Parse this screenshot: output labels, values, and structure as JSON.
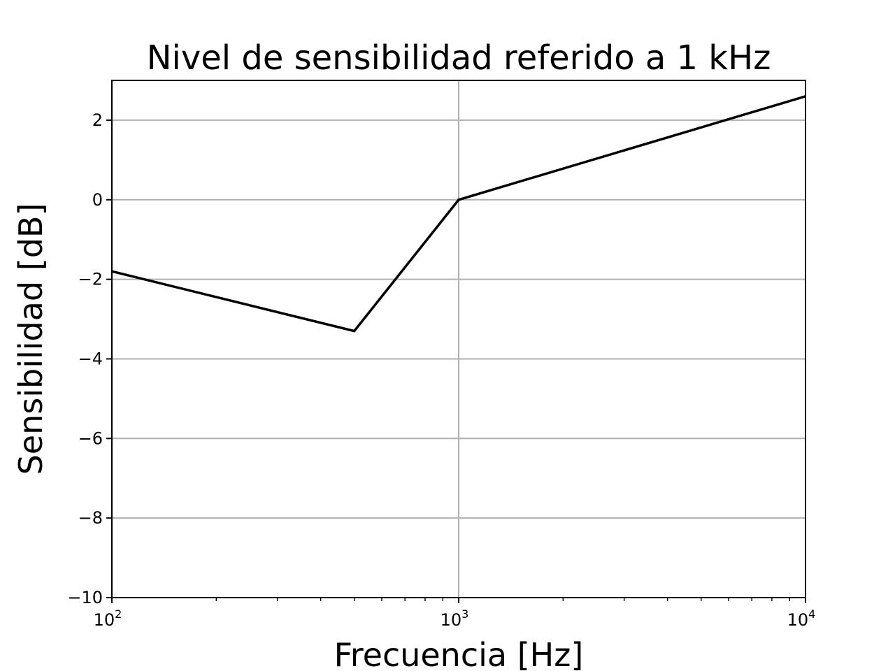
{
  "chart_data": {
    "type": "line",
    "title": "Nivel de sensibilidad referido a 1 kHz",
    "xlabel": "Frecuencia [Hz]",
    "ylabel": "Sensibilidad [dB]",
    "x_scale": "log",
    "xlim": [
      100,
      10000
    ],
    "ylim": [
      -10,
      3
    ],
    "x_ticks": [
      {
        "value": 100,
        "base": "10",
        "exp": "2"
      },
      {
        "value": 1000,
        "base": "10",
        "exp": "3"
      },
      {
        "value": 10000,
        "base": "10",
        "exp": "4"
      }
    ],
    "y_ticks": [
      {
        "value": -10,
        "label": "−10"
      },
      {
        "value": -8,
        "label": "−8"
      },
      {
        "value": -6,
        "label": "−6"
      },
      {
        "value": -4,
        "label": "−4"
      },
      {
        "value": -2,
        "label": "−2"
      },
      {
        "value": 0,
        "label": "0"
      },
      {
        "value": 2,
        "label": "2"
      }
    ],
    "grid": true,
    "series": [
      {
        "color": "#000000",
        "x": [
          100,
          500,
          1000,
          10000
        ],
        "y": [
          -1.8,
          -3.3,
          0,
          2.6
        ]
      }
    ]
  }
}
